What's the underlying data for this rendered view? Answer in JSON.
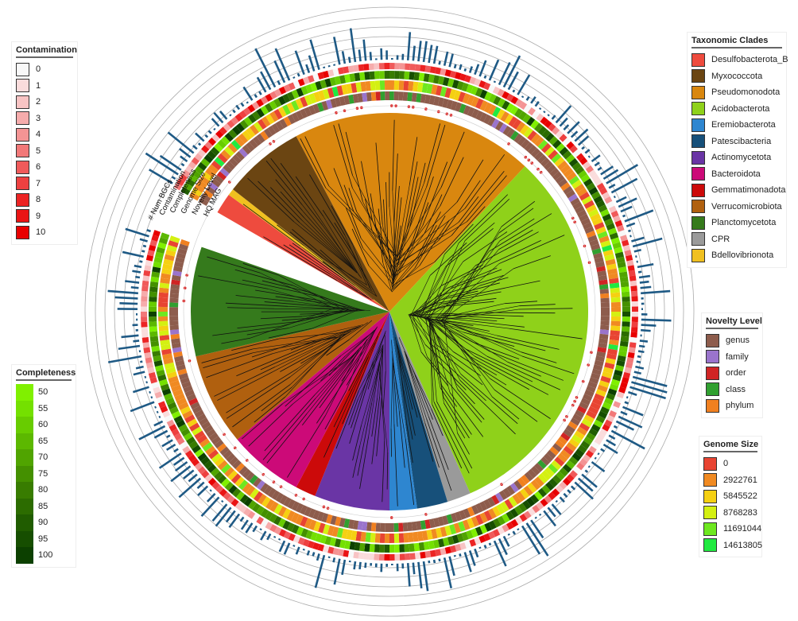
{
  "ring_labels": [
    "# Num BGCs",
    "Contamination",
    "Completeness",
    "Genome Size",
    "Novelty Level",
    "HQ MAG"
  ],
  "contamination": {
    "title": "Contamination",
    "items": [
      {
        "label": "0",
        "color": "#f8f8f8"
      },
      {
        "label": "1",
        "color": "#fadcdc"
      },
      {
        "label": "2",
        "color": "#f8c4c4"
      },
      {
        "label": "3",
        "color": "#f6acac"
      },
      {
        "label": "4",
        "color": "#f49494"
      },
      {
        "label": "5",
        "color": "#f27878"
      },
      {
        "label": "6",
        "color": "#f05a5a"
      },
      {
        "label": "7",
        "color": "#ee4040"
      },
      {
        "label": "8",
        "color": "#ec2424"
      },
      {
        "label": "9",
        "color": "#ea1414"
      },
      {
        "label": "10",
        "color": "#e80000"
      }
    ]
  },
  "completeness": {
    "title": "Completeness",
    "items": [
      {
        "label": "50",
        "color": "#80f000"
      },
      {
        "label": "55",
        "color": "#74e000"
      },
      {
        "label": "60",
        "color": "#68cc00"
      },
      {
        "label": "65",
        "color": "#5cb800"
      },
      {
        "label": "70",
        "color": "#50a400"
      },
      {
        "label": "75",
        "color": "#449000"
      },
      {
        "label": "80",
        "color": "#387c00"
      },
      {
        "label": "85",
        "color": "#2c6c00"
      },
      {
        "label": "90",
        "color": "#205c00"
      },
      {
        "label": "95",
        "color": "#164e00"
      },
      {
        "label": "100",
        "color": "#0c4000"
      }
    ]
  },
  "clades": {
    "title": "Taxonomic Clades",
    "items": [
      {
        "label": "Desulfobacterota_B",
        "color": "#ee4b3e"
      },
      {
        "label": "Myxococcota",
        "color": "#6b4512"
      },
      {
        "label": "Pseudomonodota",
        "color": "#d9870f"
      },
      {
        "label": "Acidobacterota",
        "color": "#8fd11a"
      },
      {
        "label": "Eremiobacterota",
        "color": "#2e86d0"
      },
      {
        "label": "Patescibacteria",
        "color": "#17507a"
      },
      {
        "label": "Actinomycetota",
        "color": "#6a35a5"
      },
      {
        "label": "Bacteroidota",
        "color": "#cc0a78"
      },
      {
        "label": "Gemmatimonadota",
        "color": "#cc0a0a"
      },
      {
        "label": "Verrucomicrobiota",
        "color": "#b0600f"
      },
      {
        "label": "Planctomycetota",
        "color": "#357a1c"
      },
      {
        "label": "CPR",
        "color": "#9a9a9a"
      },
      {
        "label": "Bdellovibrionota",
        "color": "#f0c020"
      }
    ]
  },
  "novelty": {
    "title": "Novelty Level",
    "items": [
      {
        "label": "genus",
        "color": "#8d5c4c"
      },
      {
        "label": "family",
        "color": "#9a74cc"
      },
      {
        "label": "order",
        "color": "#d02424"
      },
      {
        "label": "class",
        "color": "#30a030"
      },
      {
        "label": "phylum",
        "color": "#f08020"
      }
    ]
  },
  "genome_size": {
    "title": "Genome Size",
    "items": [
      {
        "label": "0",
        "color": "#e84432"
      },
      {
        "label": "2922761",
        "color": "#f08a22"
      },
      {
        "label": "5845522",
        "color": "#f5d012"
      },
      {
        "label": "8768283",
        "color": "#d4f012"
      },
      {
        "label": "11691044",
        "color": "#6ee820"
      },
      {
        "label": "14613805",
        "color": "#20ea40"
      }
    ]
  },
  "colors": {
    "bars": "#1f5a85",
    "hq_star": "#e02020"
  }
}
